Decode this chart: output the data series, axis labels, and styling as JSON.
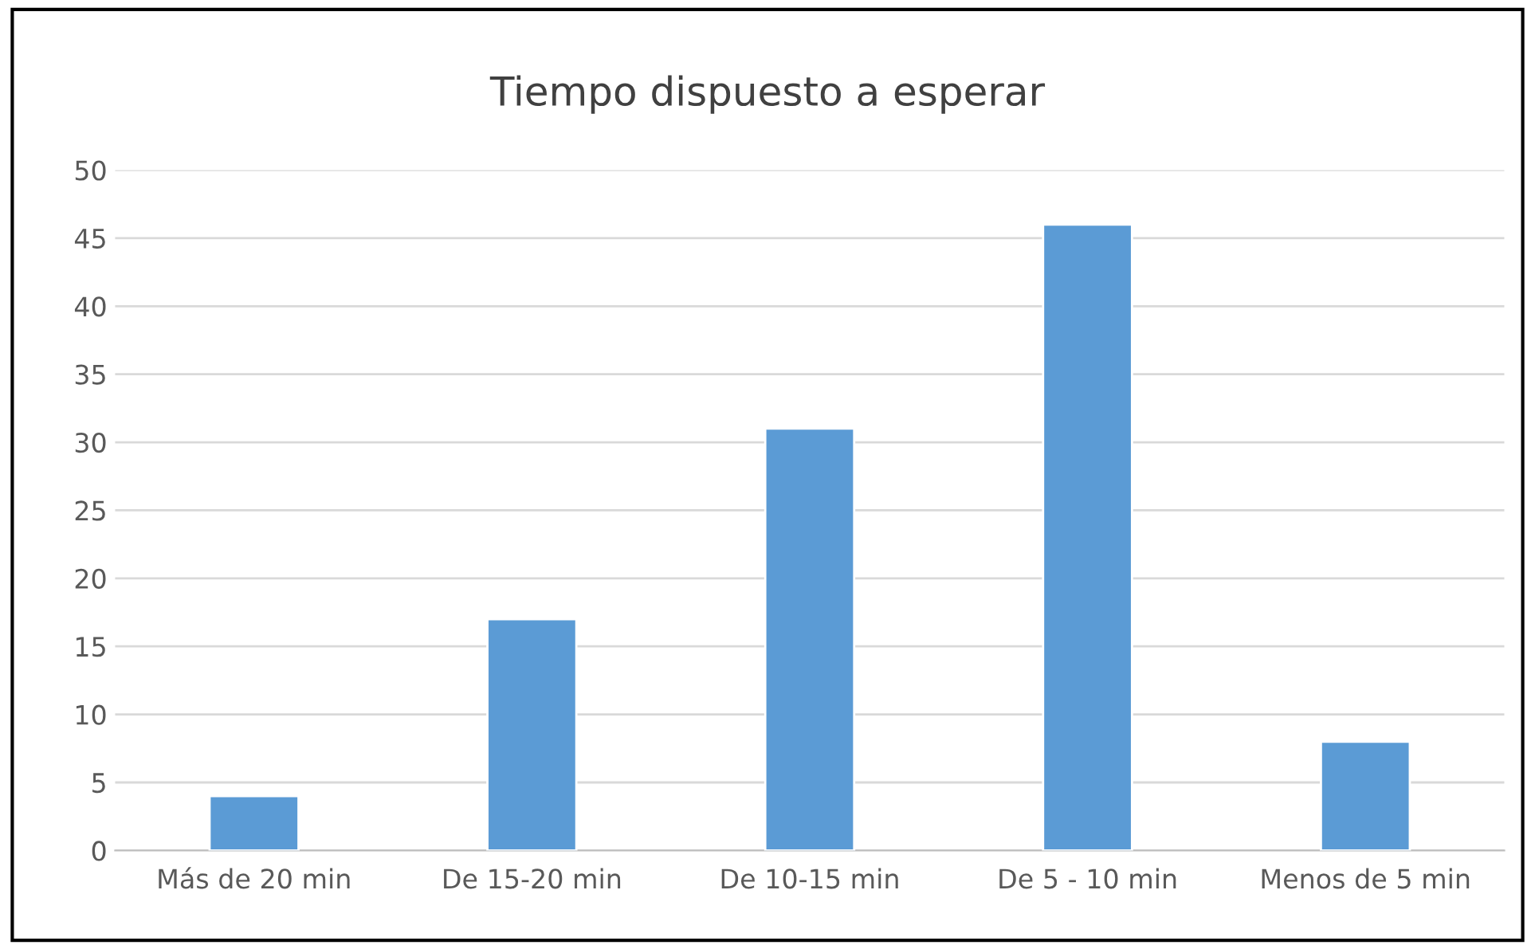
{
  "chart_data": {
    "type": "bar",
    "title": "Tiempo dispuesto a esperar",
    "categories": [
      "Más de 20 min",
      "De 15-20 min",
      "De 10-15 min",
      "De 5 - 10 min",
      "Menos de 5 min"
    ],
    "values": [
      4,
      17,
      31,
      46,
      8
    ],
    "color": "#5b9bd5",
    "ylim": [
      0,
      50
    ],
    "yticks": [
      0,
      5,
      10,
      15,
      20,
      25,
      30,
      35,
      40,
      45,
      50
    ],
    "grid": "y",
    "legend": false
  }
}
